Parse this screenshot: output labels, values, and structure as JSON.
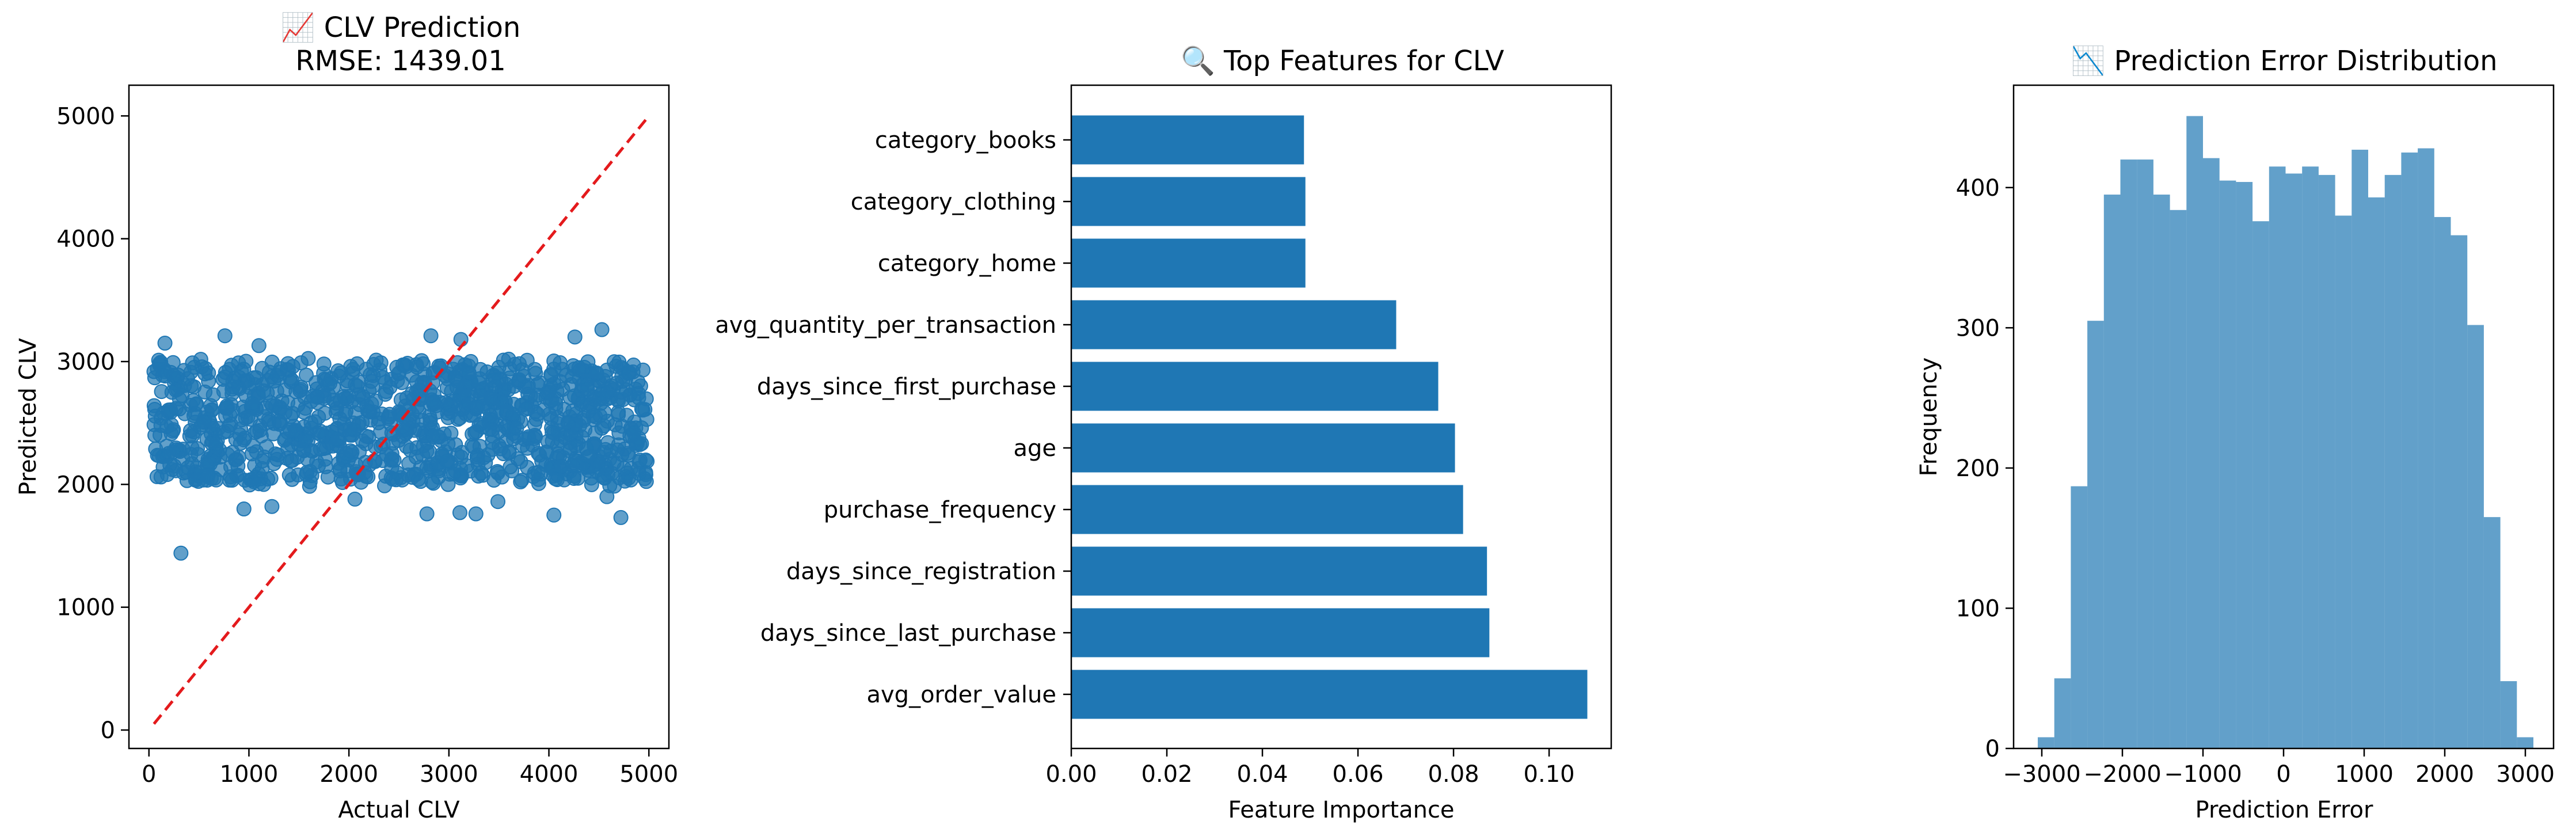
{
  "chart_data": [
    {
      "type": "scatter",
      "title": "📈 CLV Prediction",
      "subtitle": "RMSE: 1439.01",
      "xlabel": "Actual CLV",
      "ylabel": "Predicted CLV",
      "xlim": [
        -200,
        5200
      ],
      "ylim": [
        -150,
        5250
      ],
      "x_ticks": [
        0,
        1000,
        2000,
        3000,
        4000,
        5000
      ],
      "y_ticks": [
        0,
        1000,
        2000,
        3000,
        4000,
        5000
      ],
      "point_color": "#1f77b4",
      "reference_line": {
        "x": [
          50,
          5000
        ],
        "y": [
          50,
          5000
        ],
        "color": "#e41a1c",
        "style": "dashed"
      },
      "outliers": [
        {
          "x": 320,
          "y": 1440
        },
        {
          "x": 4530,
          "y": 3260
        },
        {
          "x": 4260,
          "y": 3200
        },
        {
          "x": 760,
          "y": 3210
        },
        {
          "x": 2820,
          "y": 3210
        },
        {
          "x": 3120,
          "y": 3180
        },
        {
          "x": 160,
          "y": 3150
        },
        {
          "x": 1100,
          "y": 3130
        },
        {
          "x": 4720,
          "y": 1730
        },
        {
          "x": 2780,
          "y": 1760
        },
        {
          "x": 3270,
          "y": 1760
        },
        {
          "x": 3110,
          "y": 1770
        },
        {
          "x": 4050,
          "y": 1750
        },
        {
          "x": 950,
          "y": 1800
        },
        {
          "x": 1230,
          "y": 1820
        },
        {
          "x": 4580,
          "y": 1900
        },
        {
          "x": 2060,
          "y": 1880
        },
        {
          "x": 3490,
          "y": 1860
        }
      ],
      "bulk_points": [
        {
          "x": 120,
          "y": 2480
        },
        {
          "x": 230,
          "y": 2750
        },
        {
          "x": 340,
          "y": 2210
        },
        {
          "x": 450,
          "y": 2560
        },
        {
          "x": 560,
          "y": 2900
        },
        {
          "x": 670,
          "y": 2330
        },
        {
          "x": 780,
          "y": 2620
        },
        {
          "x": 890,
          "y": 2150
        },
        {
          "x": 1000,
          "y": 2790
        },
        {
          "x": 1110,
          "y": 2440
        },
        {
          "x": 1220,
          "y": 2050
        },
        {
          "x": 1330,
          "y": 2680
        },
        {
          "x": 1440,
          "y": 2960
        },
        {
          "x": 1550,
          "y": 2280
        },
        {
          "x": 1660,
          "y": 2510
        },
        {
          "x": 1770,
          "y": 2850
        },
        {
          "x": 1880,
          "y": 2370
        },
        {
          "x": 1990,
          "y": 2110
        },
        {
          "x": 2100,
          "y": 2730
        },
        {
          "x": 2210,
          "y": 2590
        },
        {
          "x": 2320,
          "y": 2990
        },
        {
          "x": 2430,
          "y": 2250
        },
        {
          "x": 2540,
          "y": 2470
        },
        {
          "x": 2650,
          "y": 2080
        },
        {
          "x": 2760,
          "y": 2820
        },
        {
          "x": 2870,
          "y": 2640
        },
        {
          "x": 2980,
          "y": 2190
        },
        {
          "x": 3090,
          "y": 2530
        },
        {
          "x": 3200,
          "y": 2910
        },
        {
          "x": 3310,
          "y": 2310
        },
        {
          "x": 3420,
          "y": 2700
        },
        {
          "x": 3530,
          "y": 2060
        },
        {
          "x": 3640,
          "y": 2570
        },
        {
          "x": 3750,
          "y": 2880
        },
        {
          "x": 3860,
          "y": 2400
        },
        {
          "x": 3970,
          "y": 2160
        },
        {
          "x": 4080,
          "y": 2760
        },
        {
          "x": 4190,
          "y": 2500
        },
        {
          "x": 4300,
          "y": 2950
        },
        {
          "x": 4410,
          "y": 2230
        },
        {
          "x": 4520,
          "y": 2660
        },
        {
          "x": 4630,
          "y": 2090
        },
        {
          "x": 4740,
          "y": 2840
        },
        {
          "x": 4850,
          "y": 2420
        },
        {
          "x": 4960,
          "y": 2610
        }
      ]
    },
    {
      "type": "bar",
      "orientation": "horizontal",
      "title": "🔍 Top Features for CLV",
      "xlabel": "Feature Importance",
      "ylabel": "",
      "xlim": [
        0,
        0.113
      ],
      "x_ticks": [
        "0.00",
        "0.02",
        "0.04",
        "0.06",
        "0.08",
        "0.10"
      ],
      "x_tick_values": [
        0,
        0.02,
        0.04,
        0.06,
        0.08,
        0.1
      ],
      "bar_color": "#1f77b4",
      "categories": [
        "avg_order_value",
        "days_since_last_purchase",
        "days_since_registration",
        "purchase_frequency",
        "age",
        "days_since_first_purchase",
        "avg_quantity_per_transaction",
        "category_home",
        "category_clothing",
        "category_books"
      ],
      "values": [
        0.108,
        0.0875,
        0.087,
        0.082,
        0.0803,
        0.0768,
        0.068,
        0.049,
        0.049,
        0.0487
      ]
    },
    {
      "type": "histogram",
      "title": "📉 Prediction Error Distribution",
      "xlabel": "Prediction Error",
      "ylabel": "Frequency",
      "xlim": [
        -3350,
        3350
      ],
      "ylim": [
        0,
        473
      ],
      "x_ticks": [
        -3000,
        -2000,
        -1000,
        0,
        1000,
        2000,
        3000
      ],
      "x_tick_labels": [
        "−3000",
        "−2000",
        "−1000",
        "0",
        "1000",
        "2000",
        "3000"
      ],
      "y_ticks": [
        0,
        100,
        200,
        300,
        400
      ],
      "bar_color": "#1f77b4",
      "bin_edges": [
        -3050,
        -2845,
        -2640,
        -2435,
        -2230,
        -2025,
        -1820,
        -1615,
        -1410,
        -1205,
        -1000,
        -795,
        -590,
        -385,
        -180,
        25,
        230,
        435,
        640,
        845,
        1050,
        1255,
        1460,
        1665,
        1870,
        2075,
        2280,
        2485,
        2690,
        2895,
        3100
      ],
      "values": [
        8,
        50,
        187,
        305,
        395,
        420,
        420,
        395,
        384,
        451,
        421,
        405,
        404,
        376,
        415,
        410,
        415,
        409,
        380,
        427,
        393,
        409,
        425,
        428,
        379,
        366,
        302,
        165,
        48,
        8
      ]
    }
  ]
}
